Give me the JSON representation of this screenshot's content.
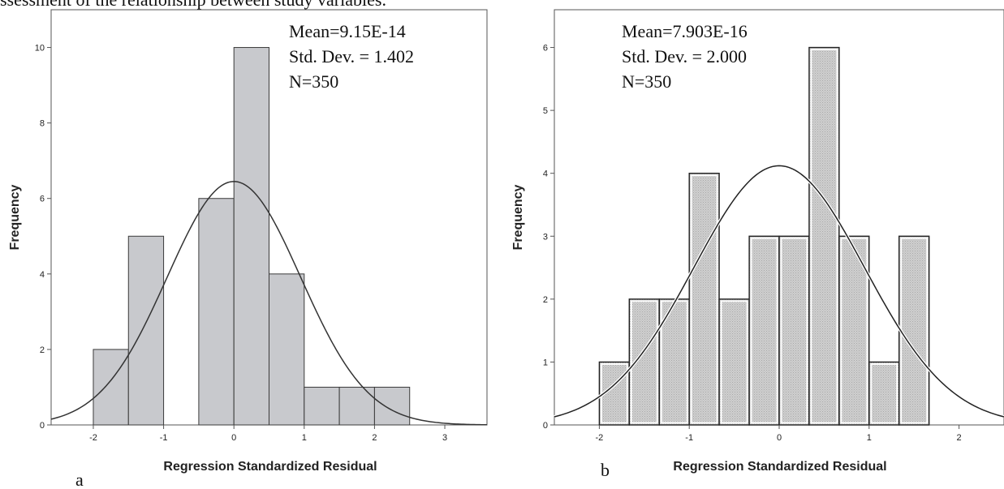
{
  "caption": "ssessment of the relationship between study variables.",
  "chart_data": [
    {
      "type": "bar",
      "panel": "a",
      "xlabel": "Regression Standardized Residual",
      "ylabel": "Frequency",
      "xlim": [
        -2.6,
        3.6
      ],
      "ylim": [
        0,
        11
      ],
      "xticks": [
        -2,
        -1,
        0,
        1,
        2,
        3
      ],
      "yticks": [
        0,
        2,
        4,
        6,
        8,
        10
      ],
      "bins": [
        {
          "x0": -2.0,
          "x1": -1.5,
          "count": 2
        },
        {
          "x0": -1.5,
          "x1": -1.0,
          "count": 5
        },
        {
          "x0": -1.0,
          "x1": -0.5,
          "count": 0
        },
        {
          "x0": -0.5,
          "x1": 0.0,
          "count": 6
        },
        {
          "x0": 0.0,
          "x1": 0.5,
          "count": 10
        },
        {
          "x0": 0.5,
          "x1": 1.0,
          "count": 4
        },
        {
          "x0": 1.0,
          "x1": 1.5,
          "count": 1
        },
        {
          "x0": 1.5,
          "x1": 2.0,
          "count": 1
        },
        {
          "x0": 2.0,
          "x1": 2.5,
          "count": 1
        }
      ],
      "normal_curve": {
        "mean": 0,
        "sd": 0.95,
        "peak": 6.45
      },
      "stats": [
        "Mean=9.15E-14",
        "Std. Dev. = 1.402",
        "N=350"
      ],
      "bar_style": "solid",
      "colors": {
        "bar_fill": "#c8c9cd",
        "bar_stroke": "#3a3a3a",
        "curve": "#333333"
      }
    },
    {
      "type": "bar",
      "panel": "b",
      "xlabel": "Regression Standardized Residual",
      "ylabel": "Frequency",
      "xlim": [
        -2.5,
        2.5
      ],
      "ylim": [
        0,
        6.6
      ],
      "xticks": [
        -2,
        -1,
        0,
        1,
        2
      ],
      "yticks": [
        0,
        1,
        2,
        3,
        4,
        5,
        6
      ],
      "bins": [
        {
          "x0": -2.0,
          "x1": -1.667,
          "count": 1
        },
        {
          "x0": -1.667,
          "x1": -1.333,
          "count": 2
        },
        {
          "x0": -1.333,
          "x1": -1.0,
          "count": 2
        },
        {
          "x0": -1.0,
          "x1": -0.667,
          "count": 4
        },
        {
          "x0": -0.667,
          "x1": -0.333,
          "count": 2
        },
        {
          "x0": -0.333,
          "x1": 0.0,
          "count": 3
        },
        {
          "x0": 0.0,
          "x1": 0.333,
          "count": 3
        },
        {
          "x0": 0.333,
          "x1": 0.667,
          "count": 6
        },
        {
          "x0": 0.667,
          "x1": 1.0,
          "count": 3
        },
        {
          "x0": 1.0,
          "x1": 1.333,
          "count": 1
        },
        {
          "x0": 1.333,
          "x1": 1.667,
          "count": 3
        }
      ],
      "normal_curve": {
        "mean": 0,
        "sd": 0.95,
        "peak": 4.12
      },
      "stats": [
        "Mean=7.903E-16",
        "Std. Dev. = 2.000",
        "N=350"
      ],
      "bar_style": "dotted",
      "colors": {
        "bar_fill": "#c9c9c9",
        "bar_stroke": "#222222",
        "curve": "#222222"
      }
    }
  ]
}
